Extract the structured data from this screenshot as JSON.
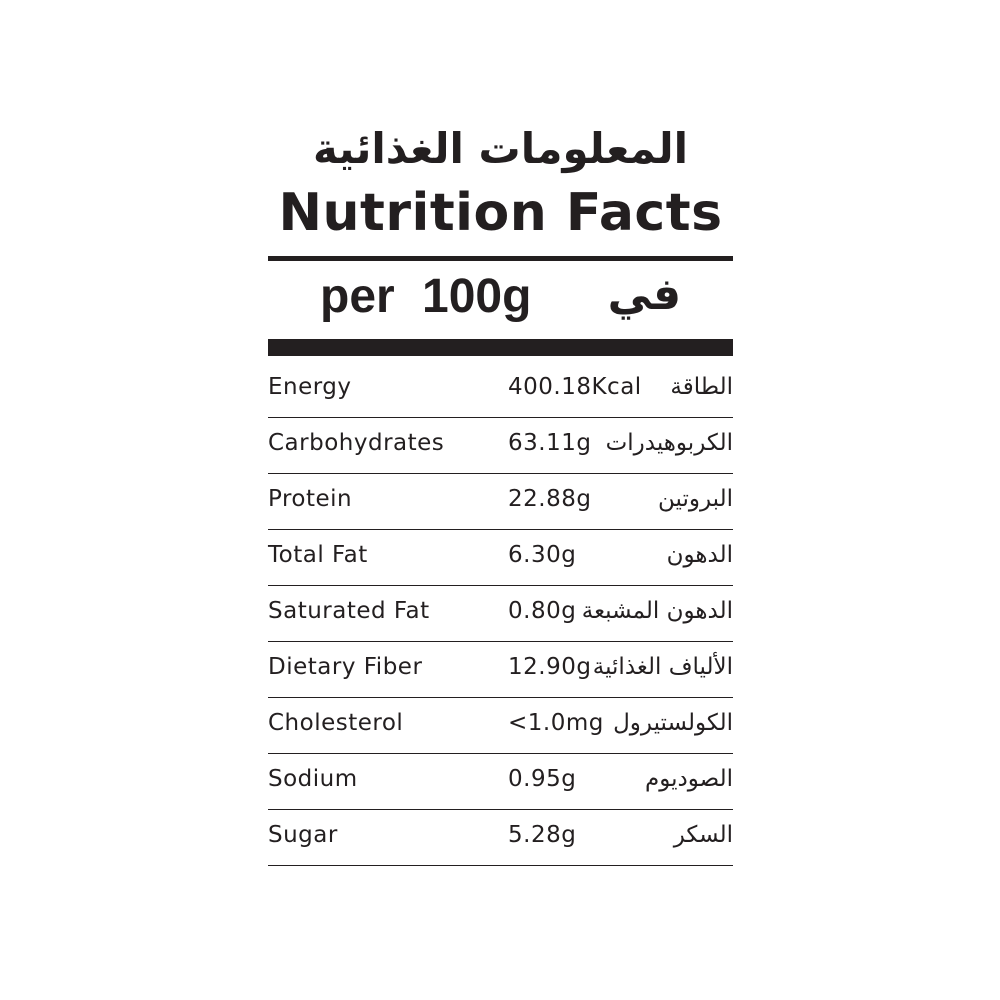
{
  "title_ar": "المعلومات الغذائية",
  "title_en": "Nutrition Facts",
  "serving": {
    "en": "per 100g",
    "ar": "في"
  },
  "rows": [
    {
      "en": "Energy",
      "value": "400.18Kcal",
      "ar": "الطاقة"
    },
    {
      "en": "Carbohydrates",
      "value": "63.11g",
      "ar": "الكربوهيدرات"
    },
    {
      "en": "Protein",
      "value": "22.88g",
      "ar": "البروتين"
    },
    {
      "en": "Total Fat",
      "value": "6.30g",
      "ar": "الدهون"
    },
    {
      "en": "Saturated Fat",
      "value": "0.80g",
      "ar": "الدهون المشبعة"
    },
    {
      "en": "Dietary Fiber",
      "value": "12.90g",
      "ar": "الألياف الغذائية"
    },
    {
      "en": "Cholesterol",
      "value": "<1.0mg",
      "ar": "الكولستيرول"
    },
    {
      "en": "Sodium",
      "value": "0.95g",
      "ar": "الصوديوم"
    },
    {
      "en": "Sugar",
      "value": "5.28g",
      "ar": "السكر"
    }
  ]
}
